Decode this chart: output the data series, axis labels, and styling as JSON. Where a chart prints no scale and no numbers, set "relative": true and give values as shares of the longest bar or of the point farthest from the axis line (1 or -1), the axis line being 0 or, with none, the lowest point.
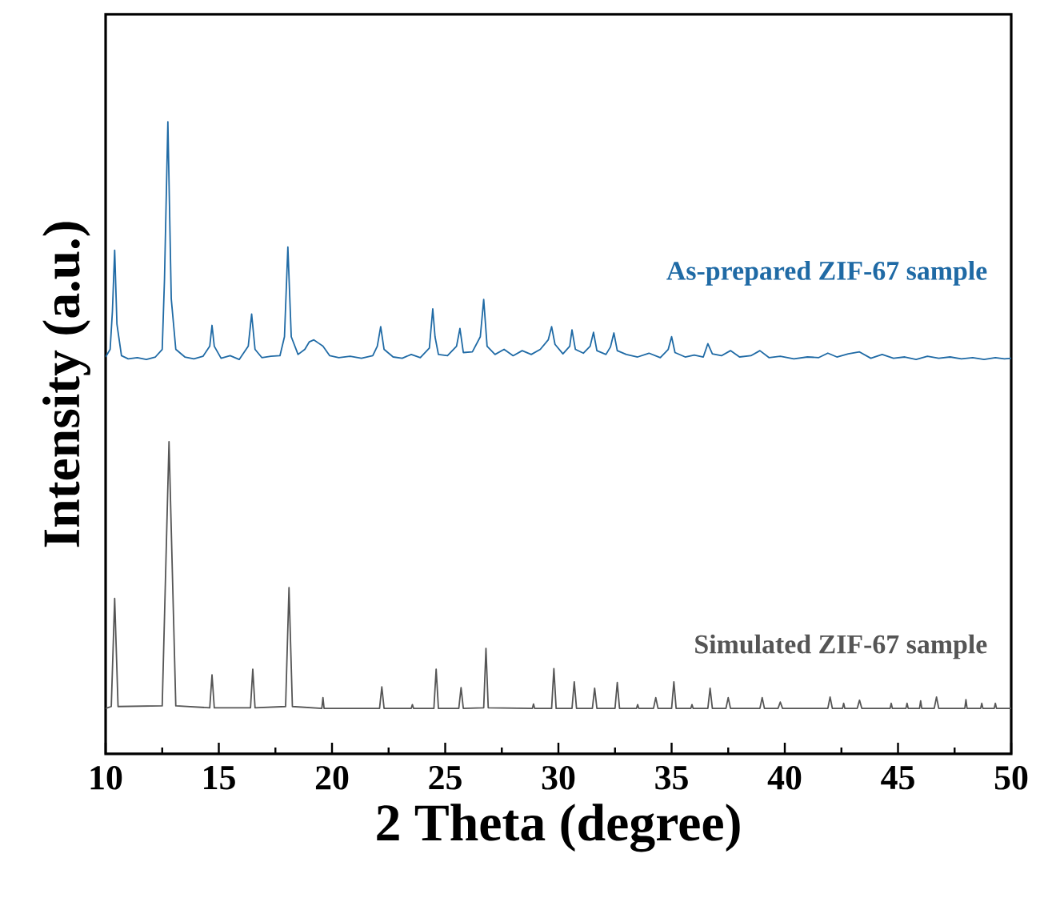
{
  "chart_data": {
    "type": "line",
    "xlabel": "2 Theta (degree)",
    "ylabel": "Intensity (a.u.)",
    "relative": true,
    "tick_labels": "x",
    "xlim": [
      10,
      50
    ],
    "xticks": [
      10,
      15,
      20,
      25,
      30,
      35,
      40,
      45,
      50
    ],
    "series": [
      {
        "name": "As-prepared ZIF-67 sample",
        "color": "#1f6aa5",
        "x": [
          10.0,
          10.2,
          10.3,
          10.4,
          10.5,
          10.7,
          11.0,
          11.4,
          11.8,
          12.2,
          12.5,
          12.6,
          12.75,
          12.9,
          13.1,
          13.5,
          13.9,
          14.3,
          14.6,
          14.7,
          14.8,
          15.1,
          15.5,
          15.9,
          16.3,
          16.45,
          16.6,
          16.9,
          17.3,
          17.7,
          17.9,
          18.05,
          18.2,
          18.5,
          18.8,
          19.0,
          19.2,
          19.4,
          19.6,
          19.9,
          20.3,
          20.8,
          21.3,
          21.8,
          22.0,
          22.15,
          22.3,
          22.7,
          23.1,
          23.5,
          23.9,
          24.3,
          24.45,
          24.55,
          24.7,
          25.1,
          25.5,
          25.65,
          25.8,
          26.2,
          26.55,
          26.7,
          26.85,
          27.2,
          27.6,
          28.0,
          28.4,
          28.8,
          29.2,
          29.55,
          29.7,
          29.85,
          30.2,
          30.5,
          30.6,
          30.75,
          31.1,
          31.4,
          31.55,
          31.7,
          32.1,
          32.3,
          32.45,
          32.6,
          33.0,
          33.5,
          34.0,
          34.5,
          34.85,
          35.0,
          35.15,
          35.6,
          36.0,
          36.4,
          36.6,
          36.8,
          37.2,
          37.6,
          38.0,
          38.5,
          38.9,
          39.3,
          39.8,
          40.4,
          41.0,
          41.5,
          41.9,
          42.3,
          42.8,
          43.3,
          43.8,
          44.3,
          44.8,
          45.3,
          45.8,
          46.3,
          46.8,
          47.3,
          47.8,
          48.3,
          48.8,
          49.3,
          49.7,
          50.0
        ],
        "values": [
          0.628,
          0.64,
          0.7,
          0.797,
          0.68,
          0.63,
          0.625,
          0.627,
          0.624,
          0.628,
          0.64,
          0.75,
          1.0,
          0.72,
          0.64,
          0.628,
          0.625,
          0.629,
          0.645,
          0.678,
          0.645,
          0.626,
          0.63,
          0.624,
          0.645,
          0.696,
          0.64,
          0.627,
          0.629,
          0.63,
          0.66,
          0.802,
          0.66,
          0.632,
          0.64,
          0.652,
          0.655,
          0.65,
          0.645,
          0.63,
          0.627,
          0.629,
          0.626,
          0.63,
          0.645,
          0.676,
          0.64,
          0.628,
          0.626,
          0.632,
          0.627,
          0.642,
          0.704,
          0.66,
          0.632,
          0.63,
          0.645,
          0.673,
          0.635,
          0.636,
          0.66,
          0.719,
          0.645,
          0.632,
          0.64,
          0.63,
          0.638,
          0.632,
          0.64,
          0.655,
          0.676,
          0.648,
          0.633,
          0.645,
          0.671,
          0.64,
          0.634,
          0.645,
          0.667,
          0.638,
          0.632,
          0.644,
          0.666,
          0.638,
          0.632,
          0.628,
          0.634,
          0.627,
          0.64,
          0.66,
          0.635,
          0.628,
          0.631,
          0.628,
          0.649,
          0.633,
          0.63,
          0.638,
          0.628,
          0.63,
          0.638,
          0.627,
          0.629,
          0.625,
          0.628,
          0.627,
          0.634,
          0.628,
          0.633,
          0.636,
          0.626,
          0.632,
          0.626,
          0.628,
          0.624,
          0.629,
          0.626,
          0.628,
          0.625,
          0.627,
          0.624,
          0.627,
          0.625,
          0.626
        ]
      },
      {
        "name": "Simulated ZIF-67 sample",
        "color": "#555555",
        "x": [
          10.0,
          10.25,
          10.4,
          10.55,
          12.5,
          12.8,
          13.1,
          14.6,
          14.7,
          14.8,
          16.4,
          16.5,
          16.6,
          17.95,
          18.1,
          18.25,
          19.55,
          19.6,
          19.65,
          22.1,
          22.2,
          22.3,
          23.5,
          23.55,
          23.6,
          24.5,
          24.6,
          24.7,
          25.6,
          25.7,
          25.8,
          26.7,
          26.8,
          26.9,
          28.85,
          28.9,
          28.95,
          29.7,
          29.8,
          29.9,
          30.6,
          30.7,
          30.8,
          31.5,
          31.6,
          31.7,
          32.5,
          32.6,
          32.7,
          33.45,
          33.5,
          33.55,
          34.2,
          34.3,
          34.4,
          35.0,
          35.1,
          35.2,
          35.85,
          35.9,
          35.95,
          36.6,
          36.7,
          36.8,
          37.4,
          37.5,
          37.6,
          38.9,
          39.0,
          39.1,
          39.7,
          39.8,
          39.9,
          41.9,
          42.0,
          42.1,
          42.55,
          42.6,
          42.65,
          43.2,
          43.3,
          43.4,
          44.65,
          44.7,
          44.75,
          45.35,
          45.4,
          45.45,
          45.95,
          46.0,
          46.05,
          46.6,
          46.7,
          46.8,
          47.95,
          48.0,
          48.05,
          48.65,
          48.7,
          48.75,
          49.25,
          49.3,
          49.35,
          50.0
        ],
        "values": [
          0.072,
          0.075,
          0.246,
          0.075,
          0.076,
          0.494,
          0.076,
          0.073,
          0.125,
          0.073,
          0.073,
          0.134,
          0.073,
          0.075,
          0.263,
          0.075,
          0.072,
          0.089,
          0.072,
          0.072,
          0.106,
          0.072,
          0.072,
          0.078,
          0.072,
          0.072,
          0.134,
          0.072,
          0.072,
          0.105,
          0.072,
          0.073,
          0.167,
          0.073,
          0.072,
          0.079,
          0.072,
          0.072,
          0.135,
          0.072,
          0.072,
          0.114,
          0.072,
          0.072,
          0.104,
          0.072,
          0.072,
          0.113,
          0.072,
          0.072,
          0.078,
          0.072,
          0.072,
          0.089,
          0.072,
          0.072,
          0.114,
          0.072,
          0.072,
          0.078,
          0.072,
          0.072,
          0.104,
          0.072,
          0.072,
          0.089,
          0.072,
          0.072,
          0.089,
          0.072,
          0.072,
          0.082,
          0.072,
          0.072,
          0.09,
          0.072,
          0.072,
          0.08,
          0.072,
          0.072,
          0.085,
          0.072,
          0.072,
          0.08,
          0.072,
          0.072,
          0.08,
          0.072,
          0.072,
          0.084,
          0.072,
          0.072,
          0.09,
          0.072,
          0.072,
          0.086,
          0.072,
          0.072,
          0.08,
          0.072,
          0.072,
          0.08,
          0.072,
          0.072
        ]
      }
    ]
  }
}
